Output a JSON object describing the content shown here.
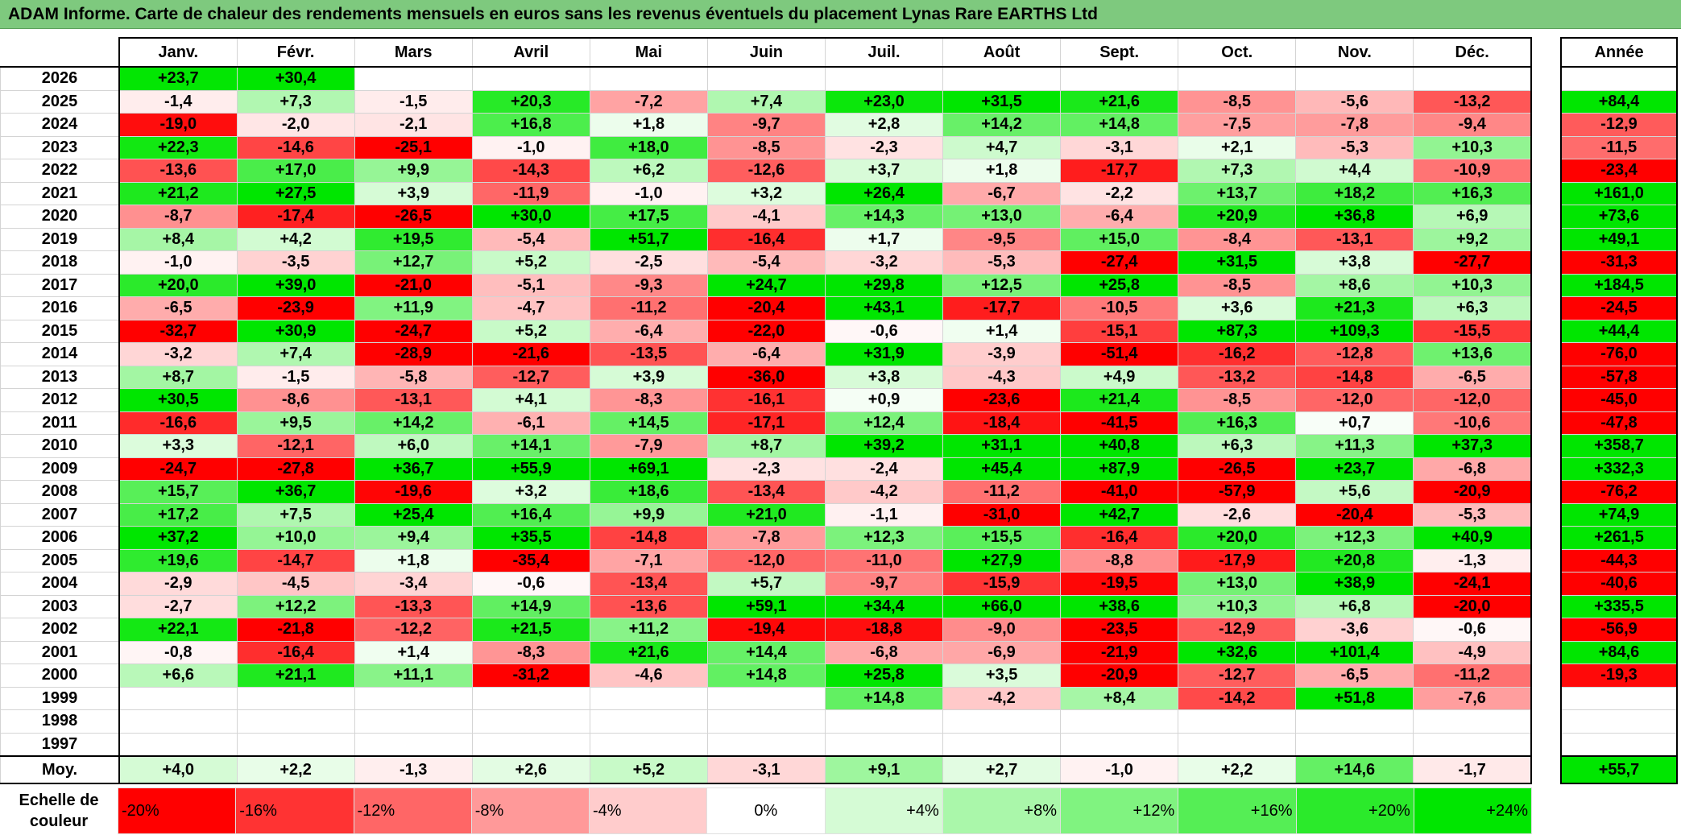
{
  "title": "ADAM Informe. Carte de chaleur des rendements mensuels en euros sans les revenus éventuels du placement Lynas Rare EARTHS Ltd",
  "chart_data": {
    "type": "heatmap",
    "title": "ADAM Informe. Carte de chaleur des rendements mensuels en euros sans les revenus éventuels du placement Lynas Rare EARTHS Ltd",
    "months": [
      "Janv.",
      "Févr.",
      "Mars",
      "Avril",
      "Mai",
      "Juin",
      "Juil.",
      "Août",
      "Sept.",
      "Oct.",
      "Nov.",
      "Déc."
    ],
    "year_header": "Année",
    "avg_label": "Moy.",
    "rows": [
      {
        "year": "2026",
        "values": [
          "+23,7",
          "+30,4",
          "",
          "",
          "",
          "",
          "",
          "",
          "",
          "",
          "",
          ""
        ],
        "annual": ""
      },
      {
        "year": "2025",
        "values": [
          "-1,4",
          "+7,3",
          "-1,5",
          "+20,3",
          "-7,2",
          "+7,4",
          "+23,0",
          "+31,5",
          "+21,6",
          "-8,5",
          "-5,6",
          "-13,2"
        ],
        "annual": "+84,4"
      },
      {
        "year": "2024",
        "values": [
          "-19,0",
          "-2,0",
          "-2,1",
          "+16,8",
          "+1,8",
          "-9,7",
          "+2,8",
          "+14,2",
          "+14,8",
          "-7,5",
          "-7,8",
          "-9,4"
        ],
        "annual": "-12,9"
      },
      {
        "year": "2023",
        "values": [
          "+22,3",
          "-14,6",
          "-25,1",
          "-1,0",
          "+18,0",
          "-8,5",
          "-2,3",
          "+4,7",
          "-3,1",
          "+2,1",
          "-5,3",
          "+10,3"
        ],
        "annual": "-11,5"
      },
      {
        "year": "2022",
        "values": [
          "-13,6",
          "+17,0",
          "+9,9",
          "-14,3",
          "+6,2",
          "-12,6",
          "+3,7",
          "+1,8",
          "-17,7",
          "+7,3",
          "+4,4",
          "-10,9"
        ],
        "annual": "-23,4"
      },
      {
        "year": "2021",
        "values": [
          "+21,2",
          "+27,5",
          "+3,9",
          "-11,9",
          "-1,0",
          "+3,2",
          "+26,4",
          "-6,7",
          "-2,2",
          "+13,7",
          "+18,2",
          "+16,3"
        ],
        "annual": "+161,0"
      },
      {
        "year": "2020",
        "values": [
          "-8,7",
          "-17,4",
          "-26,5",
          "+30,0",
          "+17,5",
          "-4,1",
          "+14,3",
          "+13,0",
          "-6,4",
          "+20,9",
          "+36,8",
          "+6,9"
        ],
        "annual": "+73,6"
      },
      {
        "year": "2019",
        "values": [
          "+8,4",
          "+4,2",
          "+19,5",
          "-5,4",
          "+51,7",
          "-16,4",
          "+1,7",
          "-9,5",
          "+15,0",
          "-8,4",
          "-13,1",
          "+9,2"
        ],
        "annual": "+49,1"
      },
      {
        "year": "2018",
        "values": [
          "-1,0",
          "-3,5",
          "+12,7",
          "+5,2",
          "-2,5",
          "-5,4",
          "-3,2",
          "-5,3",
          "-27,4",
          "+31,5",
          "+3,8",
          "-27,7"
        ],
        "annual": "-31,3"
      },
      {
        "year": "2017",
        "values": [
          "+20,0",
          "+39,0",
          "-21,0",
          "-5,1",
          "-9,3",
          "+24,7",
          "+29,8",
          "+12,5",
          "+25,8",
          "-8,5",
          "+8,6",
          "+10,3"
        ],
        "annual": "+184,5"
      },
      {
        "year": "2016",
        "values": [
          "-6,5",
          "-23,9",
          "+11,9",
          "-4,7",
          "-11,2",
          "-20,4",
          "+43,1",
          "-17,7",
          "-10,5",
          "+3,6",
          "+21,3",
          "+6,3"
        ],
        "annual": "-24,5"
      },
      {
        "year": "2015",
        "values": [
          "-32,7",
          "+30,9",
          "-24,7",
          "+5,2",
          "-6,4",
          "-22,0",
          "-0,6",
          "+1,4",
          "-15,1",
          "+87,3",
          "+109,3",
          "-15,5"
        ],
        "annual": "+44,4"
      },
      {
        "year": "2014",
        "values": [
          "-3,2",
          "+7,4",
          "-28,9",
          "-21,6",
          "-13,5",
          "-6,4",
          "+31,9",
          "-3,9",
          "-51,4",
          "-16,2",
          "-12,8",
          "+13,6"
        ],
        "annual": "-76,0"
      },
      {
        "year": "2013",
        "values": [
          "+8,7",
          "-1,5",
          "-5,8",
          "-12,7",
          "+3,9",
          "-36,0",
          "+3,8",
          "-4,3",
          "+4,9",
          "-13,2",
          "-14,8",
          "-6,5"
        ],
        "annual": "-57,8"
      },
      {
        "year": "2012",
        "values": [
          "+30,5",
          "-8,6",
          "-13,1",
          "+4,1",
          "-8,3",
          "-16,1",
          "+0,9",
          "-23,6",
          "+21,4",
          "-8,5",
          "-12,0",
          "-12,0"
        ],
        "annual": "-45,0"
      },
      {
        "year": "2011",
        "values": [
          "-16,6",
          "+9,5",
          "+14,2",
          "-6,1",
          "+14,5",
          "-17,1",
          "+12,4",
          "-18,4",
          "-41,5",
          "+16,3",
          "+0,7",
          "-10,6"
        ],
        "annual": "-47,8"
      },
      {
        "year": "2010",
        "values": [
          "+3,3",
          "-12,1",
          "+6,0",
          "+14,1",
          "-7,9",
          "+8,7",
          "+39,2",
          "+31,1",
          "+40,8",
          "+6,3",
          "+11,3",
          "+37,3"
        ],
        "annual": "+358,7"
      },
      {
        "year": "2009",
        "values": [
          "-24,7",
          "-27,8",
          "+36,7",
          "+55,9",
          "+69,1",
          "-2,3",
          "-2,4",
          "+45,4",
          "+87,9",
          "-26,5",
          "+23,7",
          "-6,8"
        ],
        "annual": "+332,3"
      },
      {
        "year": "2008",
        "values": [
          "+15,7",
          "+36,7",
          "-19,6",
          "+3,2",
          "+18,6",
          "-13,4",
          "-4,2",
          "-11,2",
          "-41,0",
          "-57,9",
          "+5,6",
          "-20,9"
        ],
        "annual": "-76,2"
      },
      {
        "year": "2007",
        "values": [
          "+17,2",
          "+7,5",
          "+25,4",
          "+16,4",
          "+9,9",
          "+21,0",
          "-1,1",
          "-31,0",
          "+42,7",
          "-2,6",
          "-20,4",
          "-5,3"
        ],
        "annual": "+74,9"
      },
      {
        "year": "2006",
        "values": [
          "+37,2",
          "+10,0",
          "+9,4",
          "+35,5",
          "-14,8",
          "-7,8",
          "+12,3",
          "+15,5",
          "-16,4",
          "+20,0",
          "+12,3",
          "+40,9"
        ],
        "annual": "+261,5"
      },
      {
        "year": "2005",
        "values": [
          "+19,6",
          "-14,7",
          "+1,8",
          "-35,4",
          "-7,1",
          "-12,0",
          "-11,0",
          "+27,9",
          "-8,8",
          "-17,9",
          "+20,8",
          "-1,3"
        ],
        "annual": "-44,3"
      },
      {
        "year": "2004",
        "values": [
          "-2,9",
          "-4,5",
          "-3,4",
          "-0,6",
          "-13,4",
          "+5,7",
          "-9,7",
          "-15,9",
          "-19,5",
          "+13,0",
          "+38,9",
          "-24,1"
        ],
        "annual": "-40,6"
      },
      {
        "year": "2003",
        "values": [
          "-2,7",
          "+12,2",
          "-13,3",
          "+14,9",
          "-13,6",
          "+59,1",
          "+34,4",
          "+66,0",
          "+38,6",
          "+10,3",
          "+6,8",
          "-20,0"
        ],
        "annual": "+335,5"
      },
      {
        "year": "2002",
        "values": [
          "+22,1",
          "-21,8",
          "-12,2",
          "+21,5",
          "+11,2",
          "-19,4",
          "-18,8",
          "-9,0",
          "-23,5",
          "-12,9",
          "-3,6",
          "-0,6"
        ],
        "annual": "-56,9"
      },
      {
        "year": "2001",
        "values": [
          "-0,8",
          "-16,4",
          "+1,4",
          "-8,3",
          "+21,6",
          "+14,4",
          "-6,8",
          "-6,9",
          "-21,9",
          "+32,6",
          "+101,4",
          "-4,9"
        ],
        "annual": "+84,6"
      },
      {
        "year": "2000",
        "values": [
          "+6,6",
          "+21,1",
          "+11,1",
          "-31,2",
          "-4,6",
          "+14,8",
          "+25,8",
          "+3,5",
          "-20,9",
          "-12,7",
          "-6,5",
          "-11,2"
        ],
        "annual": "-19,3"
      },
      {
        "year": "1999",
        "values": [
          "",
          "",
          "",
          "",
          "",
          "",
          "+14,8",
          "-4,2",
          "+8,4",
          "-14,2",
          "+51,8",
          "-7,6"
        ],
        "annual": ""
      },
      {
        "year": "1998",
        "values": [
          "",
          "",
          "",
          "",
          "",
          "",
          "",
          "",
          "",
          "",
          "",
          ""
        ],
        "annual": ""
      },
      {
        "year": "1997",
        "values": [
          "",
          "",
          "",
          "",
          "",
          "",
          "",
          "",
          "",
          "",
          "",
          ""
        ],
        "annual": ""
      }
    ],
    "averages": [
      "+4,0",
      "+2,2",
      "-1,3",
      "+2,6",
      "+5,2",
      "-3,1",
      "+9,1",
      "+2,7",
      "-1,0",
      "+2,2",
      "+14,6",
      "-1,7"
    ],
    "average_annual": "+55,7",
    "scale_label": "Echelle de couleur",
    "scale": [
      "-20%",
      "-16%",
      "-12%",
      "-8%",
      "-4%",
      "0%",
      "+4%",
      "+8%",
      "+12%",
      "+16%",
      "+20%",
      "+24%"
    ],
    "colors": {
      "neg_max": "#ff0000",
      "neutral": "#ffffff",
      "pos_max": "#00e600",
      "title_bg": "#7ec97e"
    }
  }
}
